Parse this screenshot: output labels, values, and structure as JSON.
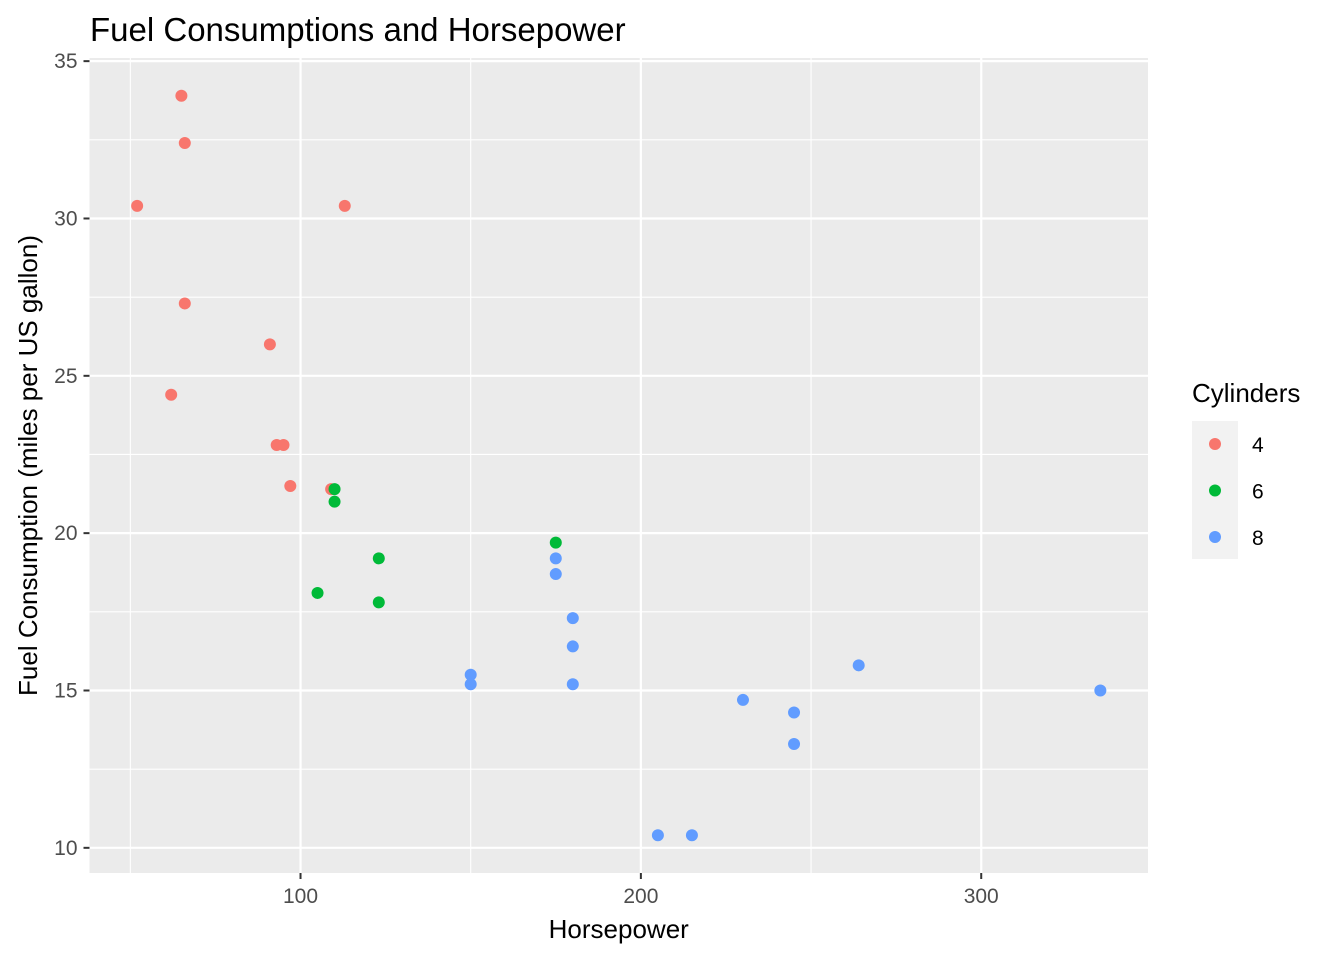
{
  "chart_data": {
    "type": "scatter",
    "title": "Fuel Consumptions and Horsepower",
    "xlabel": "Horsepower",
    "ylabel": "Fuel Consumption (miles per US gallon)",
    "xlim": [
      38,
      349
    ],
    "ylim": [
      9.2,
      35.1
    ],
    "x_ticks": [
      100,
      200,
      300
    ],
    "y_ticks": [
      10,
      15,
      20,
      25,
      30,
      35
    ],
    "grid": true,
    "background": "#EBEBEB",
    "legend": {
      "title": "Cylinders",
      "position": "right"
    },
    "series": [
      {
        "name": "4",
        "color": "#F8766D",
        "points": [
          {
            "x": 52,
            "y": 30.4
          },
          {
            "x": 65,
            "y": 33.9
          },
          {
            "x": 66,
            "y": 32.4
          },
          {
            "x": 113,
            "y": 30.4
          },
          {
            "x": 66,
            "y": 27.3
          },
          {
            "x": 91,
            "y": 26.0
          },
          {
            "x": 62,
            "y": 24.4
          },
          {
            "x": 93,
            "y": 22.8
          },
          {
            "x": 95,
            "y": 22.8
          },
          {
            "x": 97,
            "y": 21.5
          },
          {
            "x": 109,
            "y": 21.4
          }
        ]
      },
      {
        "name": "6",
        "color": "#00BA38",
        "points": [
          {
            "x": 110,
            "y": 21.4
          },
          {
            "x": 110,
            "y": 21.0
          },
          {
            "x": 123,
            "y": 19.2
          },
          {
            "x": 105,
            "y": 18.1
          },
          {
            "x": 123,
            "y": 17.8
          },
          {
            "x": 175,
            "y": 19.7
          }
        ]
      },
      {
        "name": "8",
        "color": "#619CFF",
        "points": [
          {
            "x": 175,
            "y": 19.2
          },
          {
            "x": 175,
            "y": 18.7
          },
          {
            "x": 180,
            "y": 17.3
          },
          {
            "x": 180,
            "y": 16.4
          },
          {
            "x": 180,
            "y": 15.2
          },
          {
            "x": 150,
            "y": 15.5
          },
          {
            "x": 150,
            "y": 15.2
          },
          {
            "x": 245,
            "y": 14.3
          },
          {
            "x": 230,
            "y": 14.7
          },
          {
            "x": 245,
            "y": 13.3
          },
          {
            "x": 264,
            "y": 15.8
          },
          {
            "x": 335,
            "y": 15.0
          },
          {
            "x": 205,
            "y": 10.4
          },
          {
            "x": 215,
            "y": 10.4
          }
        ]
      }
    ]
  }
}
